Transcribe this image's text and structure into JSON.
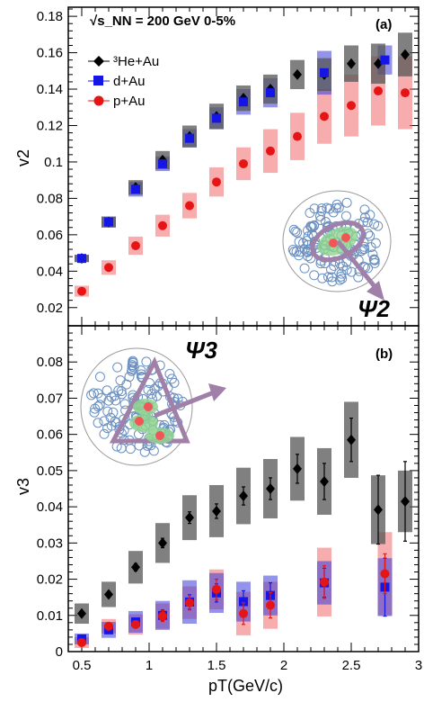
{
  "header": {
    "energy_label": "√s_NN = 200 GeV 0-5%"
  },
  "legend": {
    "entries": [
      {
        "label": "³He+Au",
        "marker": "diamond",
        "color": "#000000"
      },
      {
        "label": "d+Au",
        "marker": "square",
        "color": "#1515e6"
      },
      {
        "label": "p+Au",
        "marker": "circle",
        "color": "#e61515"
      }
    ]
  },
  "colors": {
    "he_box": "#555555",
    "d_box": "#3a3ad8",
    "p_box": "#f06a6a",
    "nucleon": "#6a8fc0",
    "plane_arrow": "#a07fa8",
    "hotspot": "#8fd48f"
  },
  "icons": [
    "collision-diagram-elliptic",
    "collision-diagram-triangular"
  ],
  "chart_data": [
    {
      "type": "scatter",
      "panel_label": "(a)",
      "ylabel": "v2",
      "xlabel": "",
      "xlim": [
        0.4,
        3.0
      ],
      "ylim": [
        0.01,
        0.185
      ],
      "yticks": [
        0.02,
        0.04,
        0.06,
        0.08,
        0.1,
        0.12,
        0.14,
        0.16,
        0.18
      ],
      "ytick_labels": [
        "0.02",
        "0.04",
        "0.06",
        "0.08",
        "0.1",
        "0.12",
        "0.14",
        "0.16",
        "0.18"
      ],
      "diagram_label": "Ψ2",
      "series": [
        {
          "name": "³He+Au",
          "x": [
            0.5,
            0.7,
            0.9,
            1.1,
            1.3,
            1.5,
            1.7,
            1.9,
            2.1,
            2.3,
            2.5,
            2.7,
            2.9
          ],
          "y": [
            0.047,
            0.067,
            0.086,
            0.101,
            0.114,
            0.125,
            0.135,
            0.14,
            0.148,
            0.148,
            0.154,
            0.154,
            0.159
          ],
          "syst": [
            0.002,
            0.003,
            0.004,
            0.005,
            0.006,
            0.007,
            0.007,
            0.008,
            0.008,
            0.009,
            0.01,
            0.011,
            0.012
          ]
        },
        {
          "name": "d+Au",
          "x": [
            0.5,
            0.7,
            0.9,
            1.1,
            1.3,
            1.5,
            1.7,
            1.9,
            2.3,
            2.75
          ],
          "y": [
            0.047,
            0.067,
            0.085,
            0.099,
            0.113,
            0.124,
            0.133,
            0.138,
            0.149,
            0.156
          ],
          "syst": [
            0.002,
            0.003,
            0.004,
            0.004,
            0.005,
            0.006,
            0.007,
            0.008,
            0.012,
            0.008
          ]
        },
        {
          "name": "p+Au",
          "x": [
            0.5,
            0.7,
            0.9,
            1.1,
            1.3,
            1.5,
            1.7,
            1.9,
            2.1,
            2.3,
            2.5,
            2.7,
            2.9
          ],
          "y": [
            0.029,
            0.042,
            0.054,
            0.065,
            0.076,
            0.089,
            0.099,
            0.106,
            0.114,
            0.125,
            0.131,
            0.139,
            0.138
          ],
          "syst": [
            0.003,
            0.004,
            0.005,
            0.006,
            0.007,
            0.008,
            0.009,
            0.012,
            0.013,
            0.015,
            0.017,
            0.019,
            0.02
          ]
        }
      ]
    },
    {
      "type": "scatter",
      "panel_label": "(b)",
      "ylabel": "v3",
      "xlabel": "pT(GeV/c)",
      "xlim": [
        0.4,
        3.0
      ],
      "ylim": [
        0.0,
        0.09
      ],
      "xticks": [
        0.5,
        1,
        1.5,
        2,
        2.5,
        3
      ],
      "xtick_labels": [
        "0.5",
        "1",
        "1.5",
        "2",
        "2.5",
        "3"
      ],
      "yticks": [
        0,
        0.01,
        0.02,
        0.03,
        0.04,
        0.05,
        0.06,
        0.07,
        0.08
      ],
      "ytick_labels": [
        "0",
        "0.01",
        "0.02",
        "0.03",
        "0.04",
        "0.05",
        "0.06",
        "0.07",
        "0.08"
      ],
      "diagram_label": "Ψ3",
      "series": [
        {
          "name": "³He+Au",
          "x": [
            0.5,
            0.7,
            0.9,
            1.1,
            1.3,
            1.5,
            1.7,
            1.9,
            2.1,
            2.3,
            2.5,
            2.7,
            2.9
          ],
          "y": [
            0.0105,
            0.0158,
            0.0233,
            0.03,
            0.037,
            0.0388,
            0.043,
            0.045,
            0.0505,
            0.047,
            0.0585,
            0.0392,
            0.0415
          ],
          "stat": [
            0.0005,
            0.0007,
            0.001,
            0.0013,
            0.0016,
            0.002,
            0.0025,
            0.003,
            0.004,
            0.005,
            0.006,
            0.0095,
            0.011
          ],
          "syst": [
            0.0028,
            0.0035,
            0.0045,
            0.0055,
            0.0062,
            0.0072,
            0.0078,
            0.0082,
            0.0088,
            0.0092,
            0.0105,
            0.0095,
            0.0085
          ]
        },
        {
          "name": "d+Au",
          "x": [
            0.5,
            0.7,
            0.9,
            1.1,
            1.3,
            1.5,
            1.7,
            1.9,
            2.3,
            2.75
          ],
          "y": [
            0.0035,
            0.006,
            0.0082,
            0.01,
            0.0137,
            0.0162,
            0.0138,
            0.0155,
            0.019,
            0.0178
          ],
          "stat": [
            0.0005,
            0.0007,
            0.001,
            0.0015,
            0.002,
            0.0025,
            0.003,
            0.0035,
            0.004,
            0.008
          ],
          "syst": [
            0.0015,
            0.0022,
            0.003,
            0.004,
            0.006,
            0.0055,
            0.0055,
            0.0055,
            0.006,
            0.008
          ]
        },
        {
          "name": "p+Au",
          "x": [
            0.5,
            0.7,
            0.9,
            1.1,
            1.3,
            1.5,
            1.7,
            1.9,
            2.3,
            2.75
          ],
          "y": [
            0.0025,
            0.007,
            0.0075,
            0.0098,
            0.0135,
            0.0172,
            0.0105,
            0.0128,
            0.0192,
            0.0215
          ],
          "stat": [
            0.0005,
            0.0007,
            0.001,
            0.0015,
            0.002,
            0.0028,
            0.003,
            0.0035,
            0.0045,
            0.0055
          ],
          "syst": [
            0.0015,
            0.002,
            0.0028,
            0.0035,
            0.0045,
            0.0055,
            0.006,
            0.0065,
            0.0095,
            0.0115
          ]
        }
      ]
    }
  ]
}
